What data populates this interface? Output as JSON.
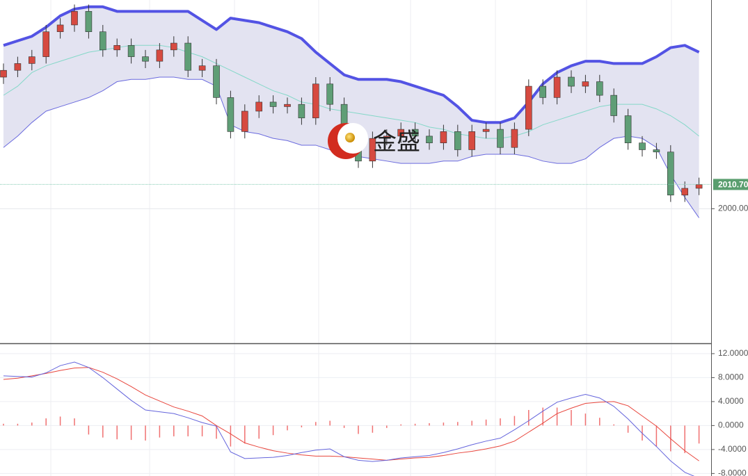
{
  "chart_data": [
    {
      "type": "candlestick",
      "open": [
        2058,
        2061,
        2064,
        2067,
        2078,
        2081,
        2087,
        2078,
        2070,
        2072,
        2067,
        2065,
        2070,
        2073,
        2061,
        2063,
        2049,
        2034,
        2043,
        2047,
        2045,
        2046,
        2040,
        2055,
        2046,
        2034,
        2021,
        2031,
        2032,
        2035,
        2032,
        2029,
        2034,
        2026,
        2034,
        2035,
        2027,
        2035,
        2054,
        2049,
        2058,
        2054,
        2056,
        2050,
        2041,
        2029,
        2026,
        2025,
        2006,
        2009
      ],
      "high": [
        2064,
        2067,
        2070,
        2081,
        2084,
        2090,
        2090,
        2081,
        2075,
        2075,
        2070,
        2073,
        2076,
        2076,
        2066,
        2066,
        2052,
        2046,
        2050,
        2050,
        2049,
        2049,
        2058,
        2058,
        2049,
        2037,
        2034,
        2035,
        2038,
        2038,
        2035,
        2037,
        2037,
        2037,
        2038,
        2038,
        2038,
        2057,
        2057,
        2061,
        2061,
        2059,
        2059,
        2053,
        2044,
        2032,
        2029,
        2028,
        2012,
        2013.7
      ],
      "low": [
        2055,
        2058,
        2061,
        2064,
        2075,
        2078,
        2075,
        2067,
        2067,
        2064,
        2062,
        2062,
        2067,
        2058,
        2058,
        2046,
        2031,
        2031,
        2040,
        2042,
        2042,
        2037,
        2037,
        2043,
        2031,
        2018,
        2018,
        2028,
        2029,
        2029,
        2026,
        2026,
        2023,
        2023,
        2031,
        2024,
        2024,
        2032,
        2046,
        2046,
        2051,
        2051,
        2047,
        2038,
        2026,
        2023,
        2022,
        2003,
        2003,
        2006
      ],
      "close": [
        2061,
        2064,
        2067,
        2078,
        2081,
        2087,
        2078,
        2070,
        2072,
        2067,
        2065,
        2070,
        2073,
        2061,
        2063,
        2049,
        2034,
        2043,
        2047,
        2045,
        2046,
        2040,
        2055,
        2046,
        2034,
        2021,
        2031,
        2032,
        2035,
        2032,
        2029,
        2034,
        2026,
        2034,
        2035,
        2027,
        2035,
        2054,
        2049,
        2058,
        2054,
        2056,
        2050,
        2041,
        2029,
        2026,
        2025,
        2006,
        2009,
        2010.7
      ],
      "upper": [
        2072,
        2074,
        2076,
        2080,
        2085,
        2088,
        2089,
        2089,
        2087,
        2087,
        2087,
        2087,
        2087,
        2087,
        2083,
        2079,
        2084,
        2083,
        2082,
        2080,
        2078,
        2075,
        2069,
        2064,
        2059,
        2057,
        2057,
        2057,
        2056,
        2054,
        2052,
        2050,
        2045,
        2039,
        2038,
        2038,
        2040,
        2047,
        2055,
        2060,
        2063,
        2065,
        2065,
        2064,
        2064,
        2064,
        2067,
        2071,
        2072,
        2069
      ],
      "middle": [
        2050,
        2054,
        2060,
        2063,
        2065,
        2067,
        2069,
        2070,
        2071,
        2072,
        2072,
        2072,
        2071,
        2069,
        2067,
        2064,
        2061,
        2058,
        2055,
        2052,
        2050,
        2047,
        2046,
        2044,
        2043,
        2042,
        2041,
        2040,
        2039,
        2038,
        2036,
        2035,
        2033,
        2032,
        2031,
        2031,
        2032,
        2034,
        2037,
        2039,
        2041,
        2043,
        2045,
        2046,
        2046,
        2046,
        2044,
        2041,
        2037,
        2032
      ],
      "lower": [
        2027,
        2032,
        2038,
        2043,
        2045,
        2047,
        2049,
        2052,
        2056,
        2057,
        2057,
        2058,
        2058,
        2057,
        2057,
        2054,
        2037,
        2034,
        2033,
        2031,
        2030,
        2028,
        2028,
        2026,
        2024,
        2023,
        2022,
        2021,
        2020,
        2020,
        2020,
        2021,
        2021,
        2023,
        2024,
        2024,
        2024,
        2023,
        2021,
        2020,
        2020,
        2022,
        2027,
        2031,
        2032,
        2031,
        2027,
        2015,
        2005,
        1996
      ],
      "up_color": "#d64a40",
      "down_color": "#5f9e76",
      "upper_color": "#5353e4",
      "middle_color": "#84d8c8",
      "lower_color": "#6a6ade",
      "band_fill": "#e3e3f1",
      "ylim": [
        1941,
        2092
      ],
      "yticks": [
        {
          "value": 2000,
          "label": "2000.00"
        }
      ],
      "last_price": {
        "value": 2010.7,
        "label": "2010.70"
      },
      "watermark": "金盛"
    },
    {
      "type": "macd",
      "macd": [
        8.3,
        8.2,
        8.1,
        8.8,
        10.0,
        10.6,
        9.7,
        8.0,
        6.1,
        4.2,
        2.6,
        2.3,
        2.0,
        1.3,
        0.5,
        -0.1,
        -4.4,
        -5.5,
        -5.4,
        -5.3,
        -5.0,
        -4.5,
        -4.1,
        -3.9,
        -5.2,
        -5.8,
        -6.0,
        -5.8,
        -5.4,
        -5.2,
        -5.0,
        -4.5,
        -3.9,
        -3.2,
        -2.6,
        -2.1,
        -0.7,
        0.8,
        2.4,
        3.9,
        4.6,
        5.2,
        4.6,
        3.2,
        1.1,
        -1.3,
        -3.5,
        -5.9,
        -7.8,
        -8.8
      ],
      "signal": [
        7.7,
        7.9,
        8.3,
        8.7,
        9.2,
        9.6,
        9.7,
        8.9,
        7.8,
        6.5,
        5.1,
        4.1,
        3.1,
        2.4,
        1.6,
        0.0,
        -1.4,
        -2.9,
        -3.6,
        -4.2,
        -4.6,
        -4.9,
        -5.1,
        -5.1,
        -5.2,
        -5.4,
        -5.6,
        -5.8,
        -5.6,
        -5.4,
        -5.3,
        -5.0,
        -4.6,
        -4.3,
        -3.9,
        -3.4,
        -2.6,
        -1.1,
        0.4,
        2.0,
        2.9,
        3.7,
        3.9,
        4.0,
        3.3,
        1.6,
        -0.1,
        -2.2,
        -4.2,
        -5.9
      ],
      "histogram": [
        0.3,
        0.3,
        0.5,
        1.2,
        1.5,
        1.2,
        -1.5,
        -2.0,
        -2.3,
        -2.4,
        -2.5,
        -2.0,
        -1.8,
        -1.8,
        -1.8,
        -2.2,
        -3.5,
        -3.0,
        -2.2,
        -1.6,
        -0.8,
        -0.3,
        0.6,
        0.8,
        -0.4,
        -1.4,
        -1.2,
        -0.4,
        0.2,
        0.3,
        0.4,
        0.5,
        0.6,
        0.8,
        1.0,
        1.2,
        1.6,
        2.6,
        3.0,
        3.0,
        2.6,
        2.0,
        1.3,
        0.2,
        -1.2,
        -2.5,
        -3.5,
        -4.3,
        -4.6,
        -3.0
      ],
      "macd_color": "#6464dc",
      "signal_color": "#e8453c",
      "histogram_color": "#f07070",
      "ylim": [
        -8.42,
        13.5
      ],
      "yticks": [
        {
          "value": 12,
          "label": "12.0000"
        },
        {
          "value": 8,
          "label": "8.0000"
        },
        {
          "value": 4,
          "label": "4.0000"
        },
        {
          "value": 0,
          "label": "0.0000"
        },
        {
          "value": -4,
          "label": "-4.0000"
        },
        {
          "value": -8,
          "label": "-8.0000"
        }
      ]
    }
  ]
}
